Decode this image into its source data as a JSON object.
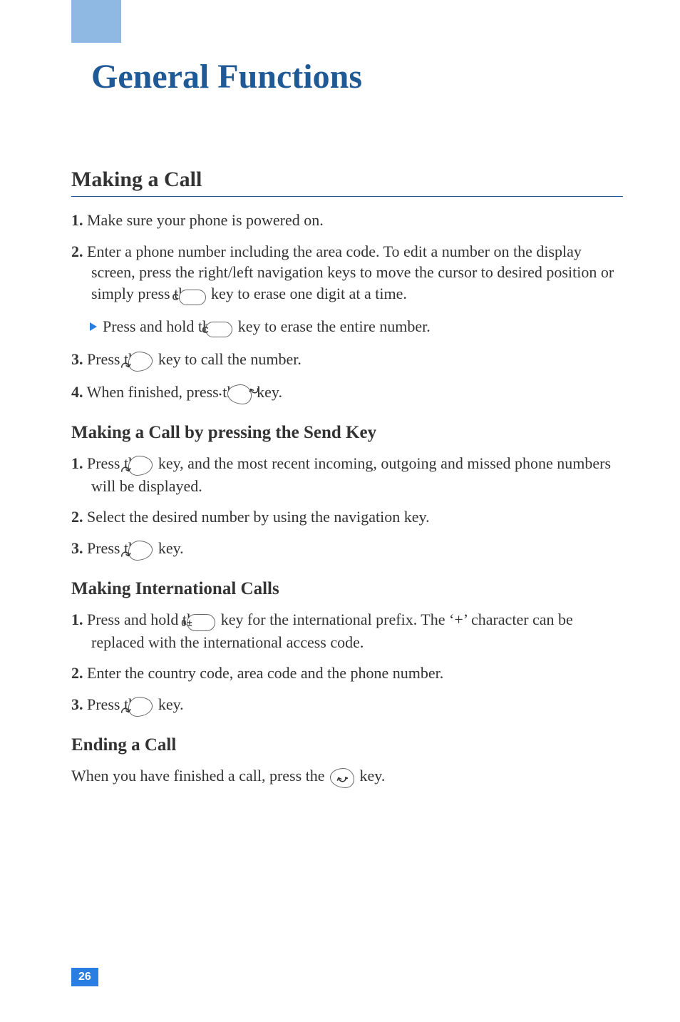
{
  "page": {
    "title": "General Functions",
    "number": "26"
  },
  "colors": {
    "brand_blue": "#205a96",
    "tab_blue": "#8fb9e3",
    "accent_blue": "#2a7de1",
    "text": "#333333",
    "background": "#ffffff"
  },
  "typography": {
    "title_fontsize": 48,
    "section_fontsize": 30,
    "subsection_fontsize": 25,
    "body_fontsize": 22,
    "pagenum_fontsize": 16
  },
  "sections": {
    "making_call": {
      "title": "Making a Call",
      "steps": {
        "s1_num": "1.",
        "s1_text": " Make sure your phone is powered on.",
        "s2_num": "2.",
        "s2_a": " Enter a phone number including the area code. To edit a number on the display screen, press the right/left navigation keys to move the cursor to desired position or simply press the ",
        "s2_b": " key to erase one digit at a time.",
        "note_a": "Press and hold the ",
        "note_b": " key to erase the entire number.",
        "s3_num": "3.",
        "s3_a": " Press the ",
        "s3_b": " key to call the number.",
        "s4_num": "4.",
        "s4_a": " When finished, press the ",
        "s4_b": " key."
      }
    },
    "send_key": {
      "title": "Making a Call by pressing the Send Key",
      "steps": {
        "s1_num": "1.",
        "s1_a": " Press the ",
        "s1_b": " key, and the most recent incoming, outgoing and missed phone numbers will be displayed.",
        "s2_num": "2.",
        "s2_text": " Select the desired number by using the navigation key.",
        "s3_num": "3.",
        "s3_a": " Press the ",
        "s3_b": " key."
      }
    },
    "intl": {
      "title": "Making International Calls",
      "steps": {
        "s1_num": "1.",
        "s1_a": " Press and hold the ",
        "s1_b": " key for the international prefix. The ‘+’ character can be replaced with the international access code.",
        "s2_num": "2.",
        "s2_text": " Enter the country code, area code and the phone number.",
        "s3_num": "3.",
        "s3_a": " Press the ",
        "s3_b": " key."
      }
    },
    "ending": {
      "title": "Ending a Call",
      "body_a": "When you have finished a call, press the ",
      "body_b": " key."
    }
  },
  "keys": {
    "c_label": "C",
    "zero_label": "0±"
  }
}
